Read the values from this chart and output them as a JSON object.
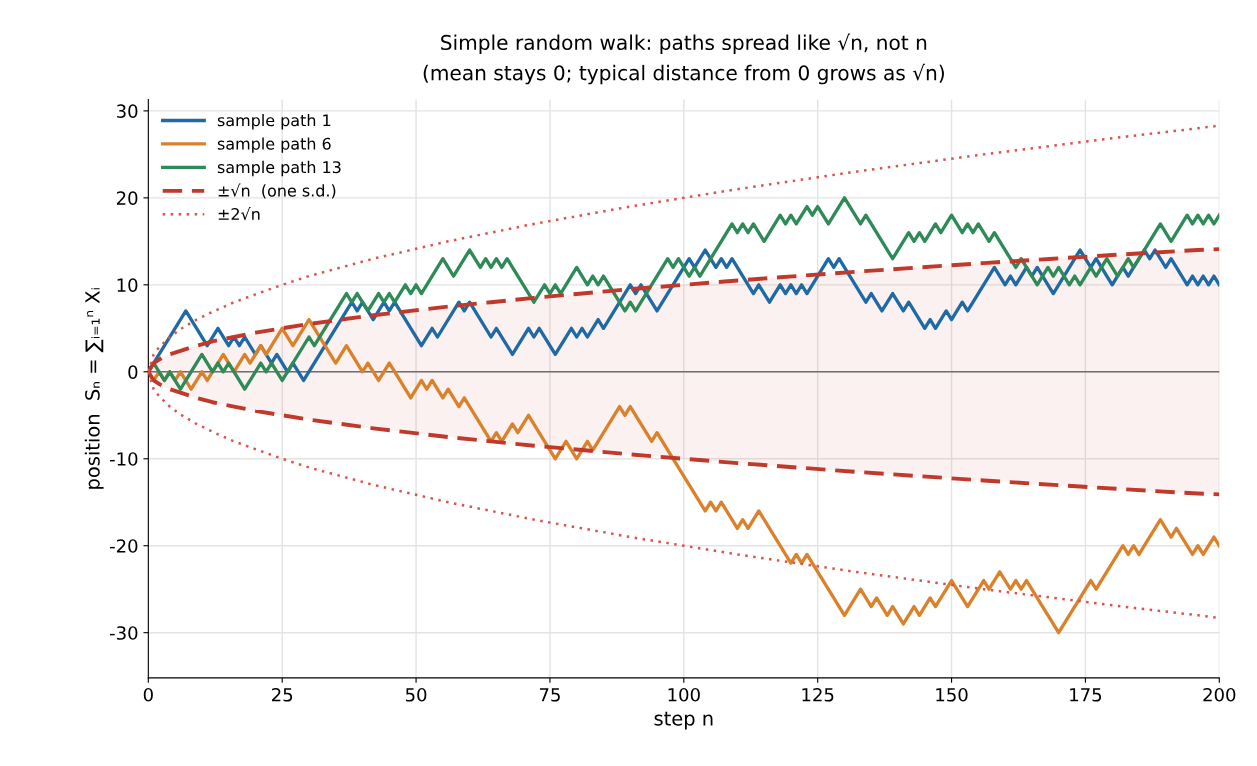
{
  "chart_data": {
    "type": "line",
    "title": "Simple random walk: paths spread like √n, not n\n(mean stays 0; typical distance from 0 grows as √n)",
    "xlabel": "step n",
    "ylabel": "position  Sₙ = ∑ᵢ₌₁ⁿ Xᵢ",
    "xlim": [
      0,
      200
    ],
    "ylim": [
      -35.2,
      31.3
    ],
    "xticks": [
      0,
      25,
      50,
      75,
      100,
      125,
      150,
      175,
      200
    ],
    "yticks": [
      -30,
      -20,
      -10,
      0,
      10,
      20,
      30
    ],
    "grid": true,
    "legend": "top left",
    "marker": "none",
    "ref_lines": [
      {
        "axis": "y",
        "value": 0,
        "color": "#707070"
      }
    ],
    "series": [
      {
        "name": "sample path 1",
        "color": "#1f6aa5",
        "line_style": "solid",
        "x": [
          0,
          7,
          11,
          13,
          15,
          16,
          17,
          18,
          20,
          21,
          23,
          24,
          26,
          27,
          29,
          38,
          39,
          40,
          42,
          44,
          45,
          46,
          51,
          53,
          54,
          58,
          59,
          60,
          64,
          65,
          68,
          71,
          72,
          73,
          76,
          79,
          80,
          81,
          82,
          84,
          85,
          90,
          91,
          92,
          95,
          101,
          102,
          104,
          106,
          107,
          108,
          109,
          113,
          114,
          116,
          118,
          119,
          120,
          121,
          122,
          123,
          127,
          128,
          129,
          134,
          135,
          137,
          139,
          141,
          142,
          145,
          146,
          147,
          149,
          150,
          152,
          153,
          158,
          160,
          161,
          162,
          164,
          165,
          166,
          169,
          174,
          176,
          177,
          180,
          182,
          183,
          184,
          186,
          187,
          188,
          190,
          191,
          194,
          195,
          196,
          197,
          198,
          199,
          200
        ],
        "values": [
          0,
          7,
          3,
          5,
          3,
          4,
          3,
          4,
          2,
          3,
          1,
          2,
          0,
          1,
          -1,
          8,
          7,
          8,
          6,
          8,
          7,
          8,
          3,
          5,
          4,
          8,
          7,
          8,
          4,
          5,
          2,
          5,
          4,
          5,
          2,
          5,
          4,
          5,
          4,
          6,
          5,
          10,
          9,
          10,
          7,
          13,
          12,
          14,
          12,
          13,
          12,
          13,
          9,
          10,
          8,
          10,
          9,
          10,
          9,
          10,
          9,
          13,
          12,
          13,
          8,
          9,
          7,
          9,
          7,
          8,
          5,
          6,
          5,
          7,
          6,
          8,
          7,
          12,
          10,
          11,
          10,
          12,
          11,
          12,
          9,
          14,
          12,
          13,
          10,
          12,
          11,
          12,
          14,
          13,
          14,
          12,
          13,
          10,
          11,
          10,
          11,
          10,
          11,
          10
        ]
      },
      {
        "name": "sample path 6",
        "color": "#d9822b",
        "line_style": "solid",
        "x": [
          1,
          2,
          3,
          4,
          5,
          6,
          8,
          10,
          11,
          14,
          16,
          18,
          19,
          21,
          22,
          25,
          27,
          30,
          35,
          37,
          40,
          41,
          43,
          45,
          47,
          49,
          51,
          52,
          53,
          55,
          56,
          58,
          59,
          64,
          65,
          66,
          68,
          69,
          71,
          76,
          78,
          80,
          82,
          83,
          88,
          89,
          90,
          94,
          95,
          97,
          104,
          105,
          106,
          107,
          110,
          111,
          112,
          114,
          120,
          121,
          122,
          123,
          130,
          133,
          135,
          136,
          138,
          139,
          141,
          143,
          144,
          146,
          147,
          150,
          153,
          156,
          157,
          159,
          161,
          162,
          163,
          164,
          170,
          176,
          177,
          182,
          183,
          184,
          185,
          189,
          191,
          192,
          195,
          196,
          197,
          199,
          200
        ],
        "values": [
          -1,
          0,
          -1,
          0,
          -1,
          0,
          -2,
          0,
          -1,
          2,
          0,
          2,
          1,
          3,
          2,
          5,
          3,
          6,
          1,
          3,
          0,
          1,
          -1,
          1,
          -1,
          -3,
          -1,
          -2,
          -1,
          -3,
          -2,
          -4,
          -3,
          -8,
          -7,
          -8,
          -6,
          -7,
          -5,
          -10,
          -8,
          -10,
          -8,
          -9,
          -4,
          -5,
          -4,
          -8,
          -7,
          -9,
          -16,
          -15,
          -16,
          -15,
          -18,
          -17,
          -18,
          -16,
          -22,
          -21,
          -22,
          -21,
          -28,
          -25,
          -27,
          -26,
          -28,
          -27,
          -29,
          -27,
          -28,
          -26,
          -27,
          -24,
          -27,
          -24,
          -25,
          -23,
          -25,
          -24,
          -25,
          -24,
          -30,
          -24,
          -25,
          -20,
          -21,
          -20,
          -21,
          -17,
          -19,
          -18,
          -21,
          -20,
          -21,
          -19,
          -20
        ]
      },
      {
        "name": "sample path 13",
        "color": "#2e8b57",
        "line_style": "solid",
        "x": [
          0,
          1,
          3,
          4,
          6,
          10,
          12,
          13,
          14,
          15,
          18,
          21,
          22,
          23,
          25,
          30,
          31,
          37,
          38,
          39,
          41,
          43,
          44,
          45,
          46,
          48,
          49,
          50,
          51,
          55,
          57,
          60,
          62,
          63,
          64,
          65,
          66,
          67,
          72,
          74,
          75,
          76,
          77,
          80,
          82,
          83,
          84,
          85,
          89,
          90,
          91,
          97,
          98,
          99,
          101,
          102,
          103,
          107,
          109,
          110,
          111,
          112,
          113,
          115,
          118,
          119,
          120,
          121,
          123,
          124,
          125,
          127,
          130,
          133,
          134,
          139,
          142,
          143,
          144,
          145,
          147,
          148,
          150,
          152,
          153,
          154,
          155,
          157,
          158,
          162,
          163,
          166,
          168,
          169,
          170,
          172,
          173,
          174,
          176,
          177,
          179,
          181,
          183,
          184,
          189,
          191,
          194,
          195,
          196,
          197,
          198,
          199,
          200
        ],
        "values": [
          0,
          1,
          -1,
          0,
          -2,
          2,
          0,
          1,
          0,
          1,
          -2,
          1,
          0,
          1,
          -1,
          4,
          3,
          9,
          8,
          9,
          7,
          9,
          8,
          9,
          8,
          10,
          9,
          10,
          9,
          13,
          11,
          14,
          12,
          13,
          12,
          13,
          12,
          13,
          8,
          10,
          9,
          10,
          9,
          12,
          10,
          11,
          10,
          11,
          7,
          8,
          7,
          13,
          12,
          13,
          11,
          12,
          11,
          15,
          17,
          16,
          17,
          16,
          17,
          15,
          18,
          17,
          18,
          17,
          19,
          18,
          19,
          17,
          20,
          17,
          18,
          13,
          16,
          15,
          16,
          15,
          17,
          16,
          18,
          16,
          17,
          16,
          17,
          15,
          16,
          12,
          13,
          10,
          12,
          11,
          12,
          10,
          11,
          10,
          12,
          11,
          13,
          11,
          13,
          12,
          17,
          15,
          18,
          17,
          18,
          17,
          18,
          17,
          18
        ]
      },
      {
        "name": "±√n  (one s.d.)",
        "color": "#c0392b",
        "line_style": "dashed",
        "x": [
          0,
          1,
          2,
          4,
          6,
          9,
          12,
          16,
          20,
          25,
          30,
          36,
          42,
          49,
          56,
          64,
          72,
          81,
          90,
          100,
          110,
          121,
          132,
          144,
          156,
          169,
          182,
          196,
          200
        ],
        "values": [
          0,
          1,
          1.4,
          2,
          2.4,
          3,
          3.5,
          4,
          4.5,
          5,
          5.5,
          6,
          6.5,
          7,
          7.5,
          8,
          8.5,
          9,
          9.5,
          10,
          10.5,
          11,
          11.5,
          12,
          12.5,
          13,
          13.5,
          14,
          14.1
        ],
        "lower": [
          0,
          -1,
          -1.4,
          -2,
          -2.4,
          -3,
          -3.5,
          -4,
          -4.5,
          -5,
          -5.5,
          -6,
          -6.5,
          -7,
          -7.5,
          -8,
          -8.5,
          -9,
          -9.5,
          -10,
          -10.5,
          -11,
          -11.5,
          -12,
          -12.5,
          -13,
          -13.5,
          -14,
          -14.1
        ],
        "upper": [
          0,
          1,
          1.4,
          2,
          2.4,
          3,
          3.5,
          4,
          4.5,
          5,
          5.5,
          6,
          6.5,
          7,
          7.5,
          8,
          8.5,
          9,
          9.5,
          10,
          10.5,
          11,
          11.5,
          12,
          12.5,
          13,
          13.5,
          14,
          14.1
        ]
      },
      {
        "color": "#c0392b",
        "line_style": "dashed",
        "x": [
          0,
          1,
          2,
          4,
          6,
          9,
          12,
          16,
          20,
          25,
          30,
          36,
          42,
          49,
          56,
          64,
          72,
          81,
          90,
          100,
          110,
          121,
          132,
          144,
          156,
          169,
          182,
          196,
          200
        ],
        "values": [
          0,
          -1,
          -1.4,
          -2,
          -2.4,
          -3,
          -3.5,
          -4,
          -4.5,
          -5,
          -5.5,
          -6,
          -6.5,
          -7,
          -7.5,
          -8,
          -8.5,
          -9,
          -9.5,
          -10,
          -10.5,
          -11,
          -11.5,
          -12,
          -12.5,
          -13,
          -13.5,
          -14,
          -14.1
        ]
      },
      {
        "name": "±2√n",
        "color": "#d9534f",
        "line_style": "dotted",
        "x": [
          0,
          1,
          2,
          4,
          6,
          9,
          12,
          16,
          20,
          25,
          30,
          36,
          42,
          49,
          56,
          64,
          72,
          81,
          90,
          100,
          110,
          121,
          132,
          144,
          156,
          169,
          182,
          196,
          200
        ],
        "values": [
          0,
          2,
          2.8,
          4,
          4.9,
          6,
          6.9,
          8,
          8.9,
          10,
          11,
          12,
          13,
          14,
          15,
          16,
          17,
          18,
          19,
          20,
          21,
          22,
          23,
          24,
          25,
          26,
          27,
          28,
          28.3
        ]
      },
      {
        "color": "#d9534f",
        "line_style": "dotted",
        "x": [
          0,
          1,
          2,
          4,
          6,
          9,
          12,
          16,
          20,
          25,
          30,
          36,
          42,
          49,
          56,
          64,
          72,
          81,
          90,
          100,
          110,
          121,
          132,
          144,
          156,
          169,
          182,
          196,
          200
        ],
        "values": [
          0,
          -2,
          -2.8,
          -4,
          -4.9,
          -6,
          -6.9,
          -8,
          -8.9,
          -10,
          -11,
          -12,
          -13,
          -14,
          -15,
          -16,
          -17,
          -18,
          -19,
          -20,
          -21,
          -22,
          -23,
          -24,
          -25,
          -26,
          -27,
          -28,
          -28.3
        ]
      }
    ]
  }
}
